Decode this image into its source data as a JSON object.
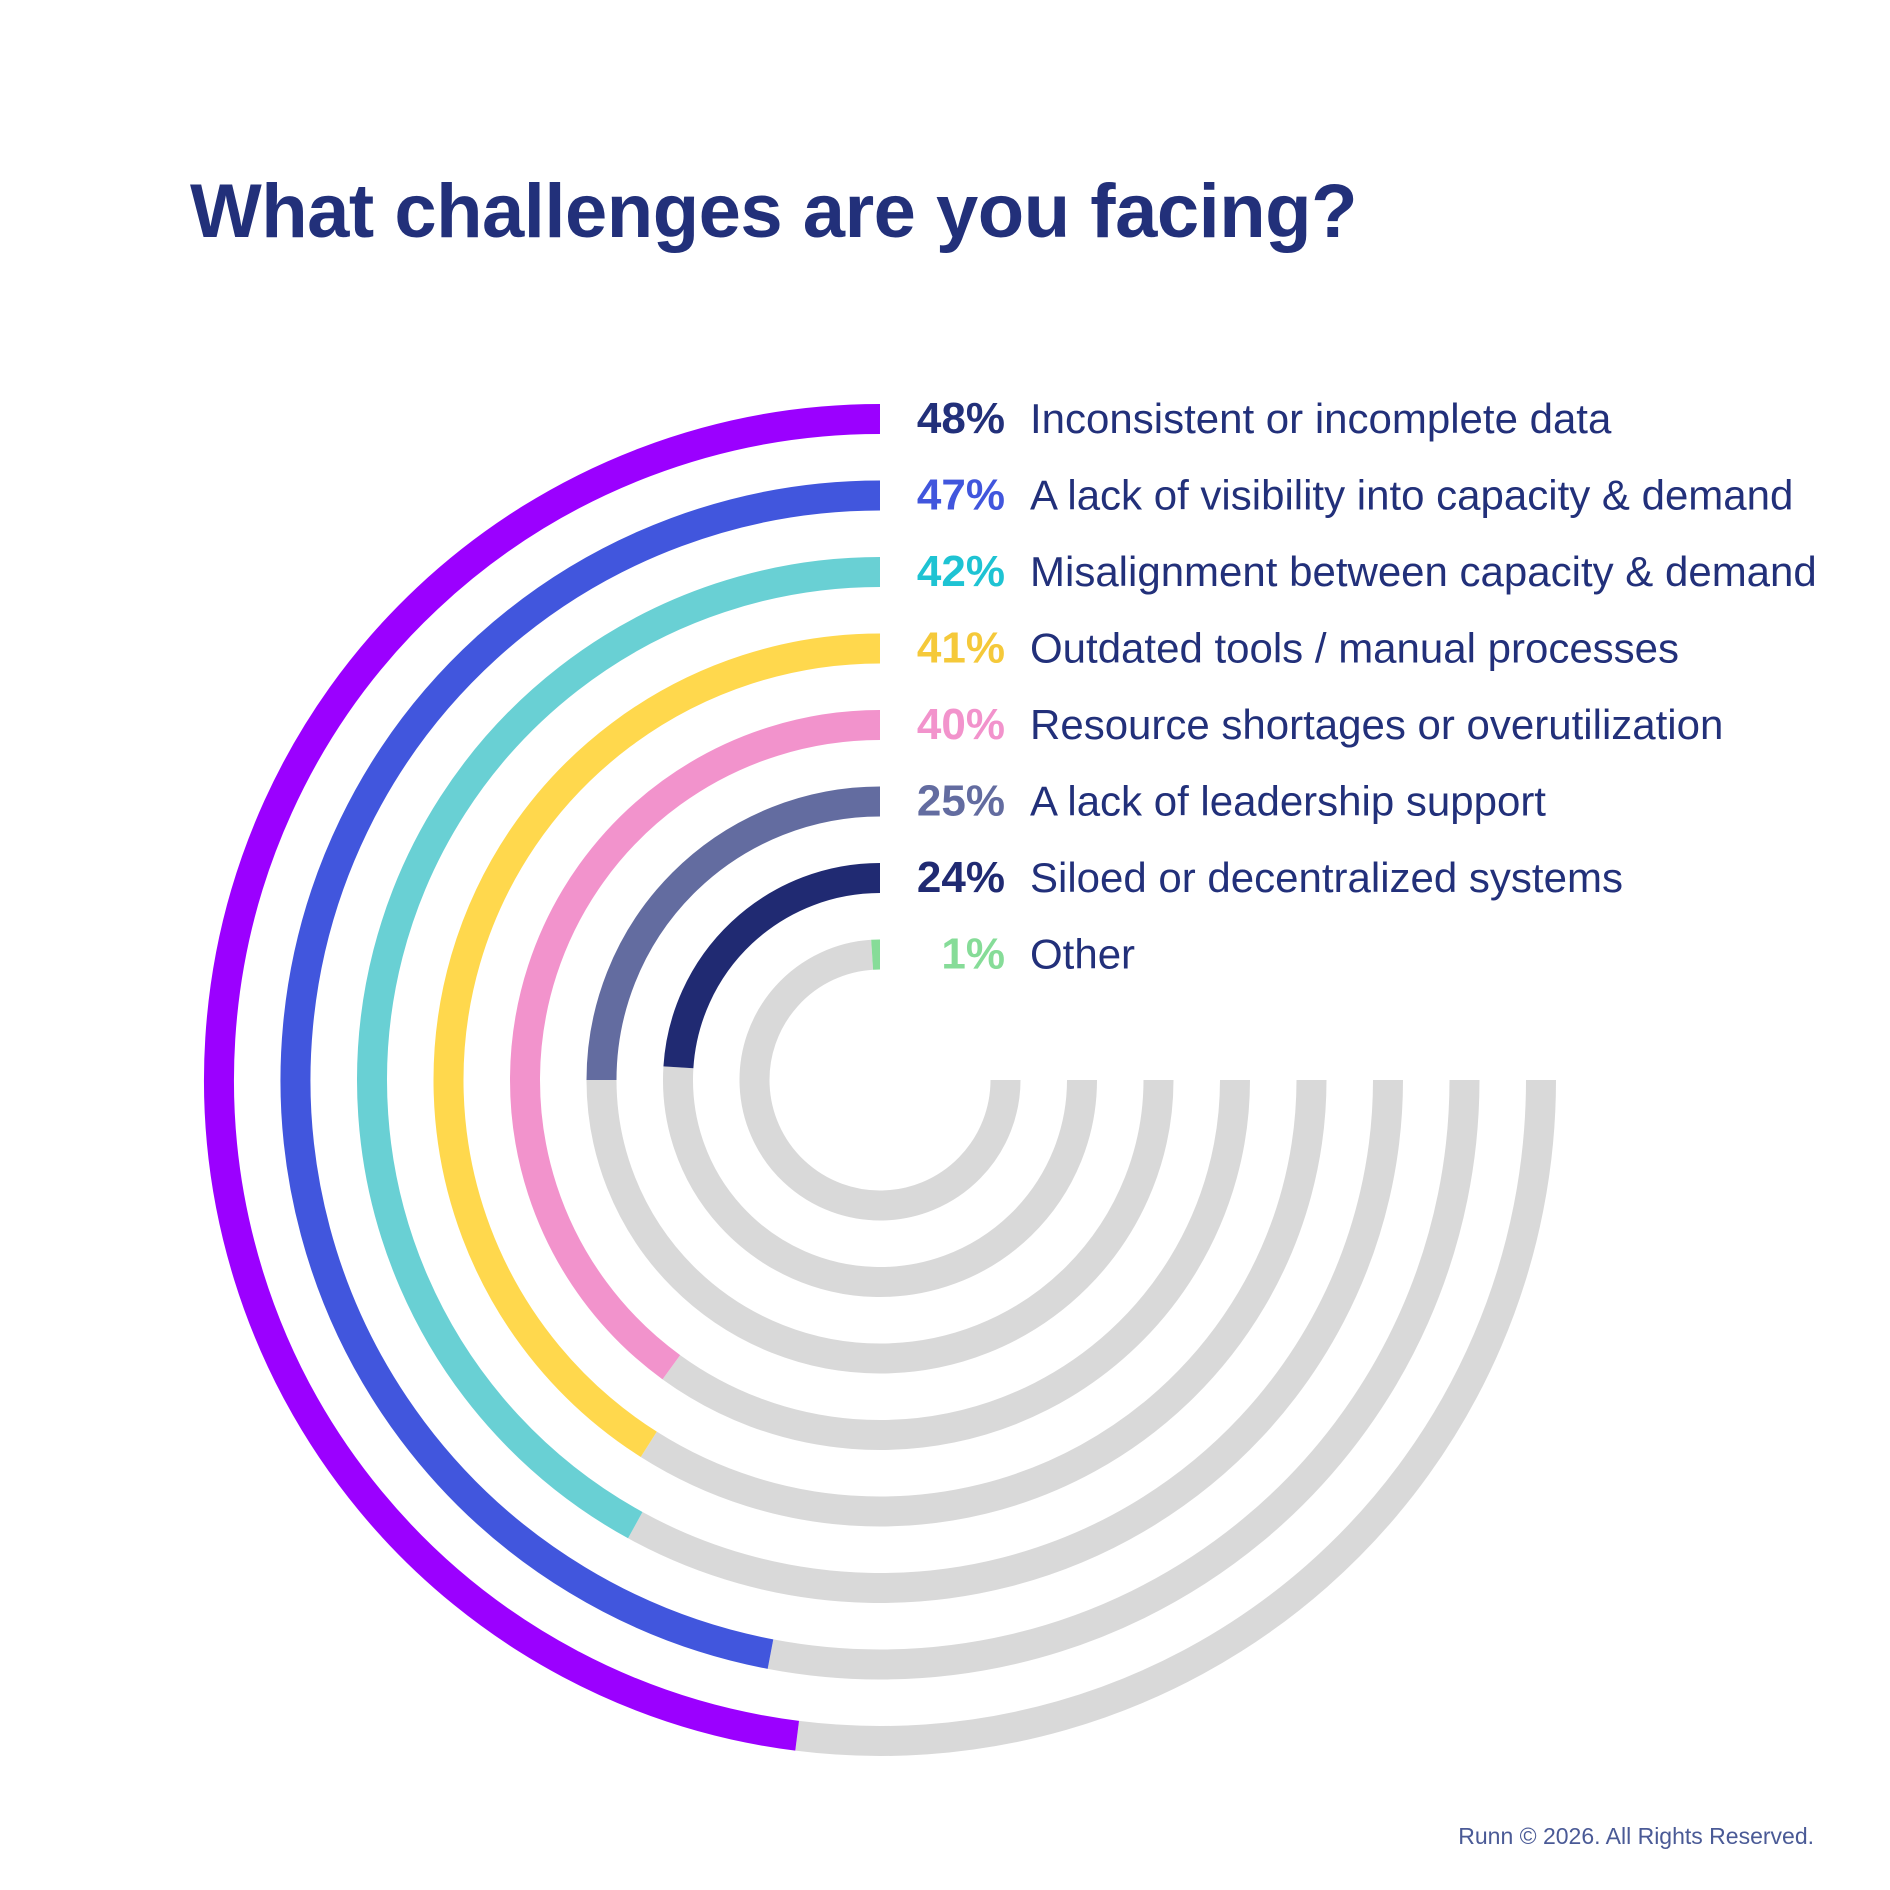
{
  "chart_data": {
    "type": "radial_bar",
    "title": "What challenges are you facing?",
    "value_unit": "%",
    "scale_max": 75,
    "series": [
      {
        "label": "Inconsistent or incomplete data",
        "value": 48,
        "display": "48%",
        "color": "#9b00ff"
      },
      {
        "label": "A lack of visibility into capacity & demand",
        "value": 47,
        "display": "47%",
        "color": "#4156dd"
      },
      {
        "label": "Misalignment between capacity & demand",
        "value": 42,
        "display": "42%",
        "color": "#69d0d4"
      },
      {
        "label": "Outdated tools / manual processes",
        "value": 41,
        "display": "41%",
        "color": "#ffd84d"
      },
      {
        "label": "Resource shortages or overutilization",
        "value": 40,
        "display": "40%",
        "color": "#f293cc"
      },
      {
        "label": "A lack of leadership support",
        "value": 25,
        "display": "25%",
        "color": "#636ca0"
      },
      {
        "label": "Siloed or decentralized systems",
        "value": 24,
        "display": "24%",
        "color": "#202a72"
      },
      {
        "label": "Other",
        "value": 1,
        "display": "1%",
        "color": "#86dc98"
      }
    ],
    "track_color": "#d9d9d9",
    "pct_text_colors": [
      "#22307a",
      "#4156dd",
      "#1ec3d3",
      "#f5c93a",
      "#f293cc",
      "#636ca0",
      "#202a72",
      "#86dc98"
    ]
  },
  "footer": "Runn © 2026. All Rights Reserved."
}
